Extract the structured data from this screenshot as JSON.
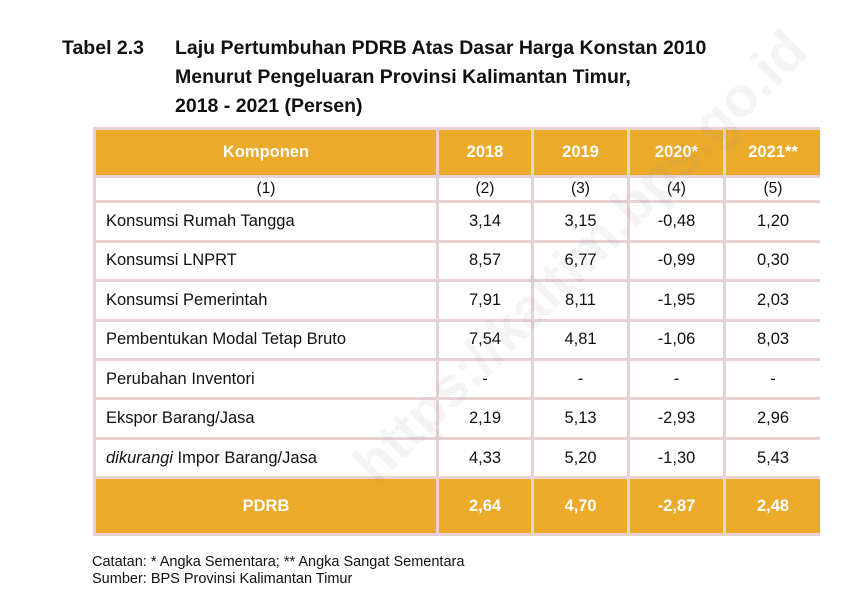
{
  "title": {
    "label": "Tabel 2.3",
    "line1": "Laju Pertumbuhan PDRB Atas Dasar Harga Konstan 2010",
    "line2": "Menurut Pengeluaran Provinsi Kalimantan Timur,",
    "line3": "2018 - 2021 (Persen)"
  },
  "table": {
    "headers": [
      "Komponen",
      "2018",
      "2019",
      "2020*",
      "2021**"
    ],
    "col_numbers": [
      "(1)",
      "(2)",
      "(3)",
      "(4)",
      "(5)"
    ],
    "rows": [
      {
        "name": "Konsumsi Rumah Tangga",
        "values": [
          "3,14",
          "3,15",
          "-0,48",
          "1,20"
        ]
      },
      {
        "name": "Konsumsi LNPRT",
        "values": [
          "8,57",
          "6,77",
          "-0,99",
          "0,30"
        ]
      },
      {
        "name": "Konsumsi Pemerintah",
        "values": [
          "7,91",
          "8,11",
          "-1,95",
          "2,03"
        ]
      },
      {
        "name": "Pembentukan Modal Tetap Bruto",
        "values": [
          "7,54",
          "4,81",
          "-1,06",
          "8,03"
        ]
      },
      {
        "name": "Perubahan Inventori",
        "values": [
          "-",
          "-",
          "-",
          "-"
        ]
      },
      {
        "name": "Ekspor Barang/Jasa",
        "values": [
          "2,19",
          "5,13",
          "-2,93",
          "2,96"
        ]
      },
      {
        "name_italic": "dikurangi",
        "name_rest": " Impor Barang/Jasa",
        "values": [
          "4,33",
          "5,20",
          "-1,30",
          "5,43"
        ]
      }
    ],
    "total": {
      "name": "PDRB",
      "values": [
        "2,64",
        "4,70",
        "-2,87",
        "2,48"
      ]
    }
  },
  "notes": {
    "note": "Catatan: * Angka Sementara; ** Angka Sangat Sementara",
    "source": "Sumber: BPS Provinsi Kalimantan Timur"
  },
  "watermark": "https://kaltim.bps.go.id",
  "colors": {
    "header_fill": "#ebaa2a",
    "grid": "#e7d1d3"
  }
}
